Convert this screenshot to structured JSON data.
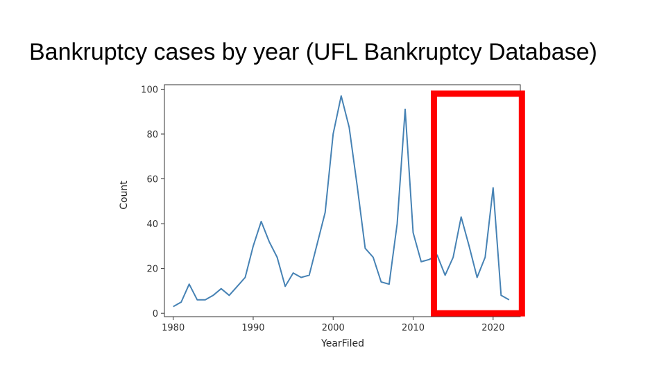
{
  "slide": {
    "title": "Bankruptcy cases by year (UFL Bankruptcy Database)"
  },
  "chart_data": {
    "type": "line",
    "title": "",
    "xlabel": "YearFiled",
    "ylabel": "Count",
    "xlim": [
      1978.9,
      1982.1
    ],
    "ylim": [
      -1.5,
      102
    ],
    "x_ticks": [
      1980,
      1990,
      2000,
      2010,
      2020
    ],
    "y_ticks": [
      0,
      20,
      40,
      60,
      80,
      100
    ],
    "grid": false,
    "legend": "none",
    "series": [
      {
        "color": "#4682b4",
        "x": [
          1980,
          1981,
          1982,
          1983,
          1984,
          1985,
          1986,
          1987,
          1988,
          1989,
          1990,
          1991,
          1992,
          1993,
          1994,
          1995,
          1996,
          1997,
          1998,
          1999,
          2000,
          2001,
          2002,
          2003,
          2004,
          2005,
          2006,
          2007,
          2008,
          2009,
          2010,
          2011,
          2012,
          2013,
          2014,
          2015,
          2016,
          2017,
          2018,
          2019,
          2020,
          2021,
          2022
        ],
        "values": [
          3,
          5,
          13,
          6,
          6,
          8,
          11,
          8,
          12,
          16,
          30,
          41,
          32,
          25,
          12,
          18,
          16,
          17,
          31,
          45,
          80,
          97,
          83,
          57,
          29,
          25,
          14,
          13,
          40,
          91,
          36,
          23,
          24,
          26,
          17,
          25,
          43,
          30,
          16,
          25,
          56,
          8,
          6
        ]
      }
    ],
    "annotations": [
      {
        "type": "highlight-box",
        "color": "#ff0000",
        "x_range": [
          2012.6,
          2023.6
        ],
        "y_range": [
          0,
          98
        ]
      }
    ]
  }
}
